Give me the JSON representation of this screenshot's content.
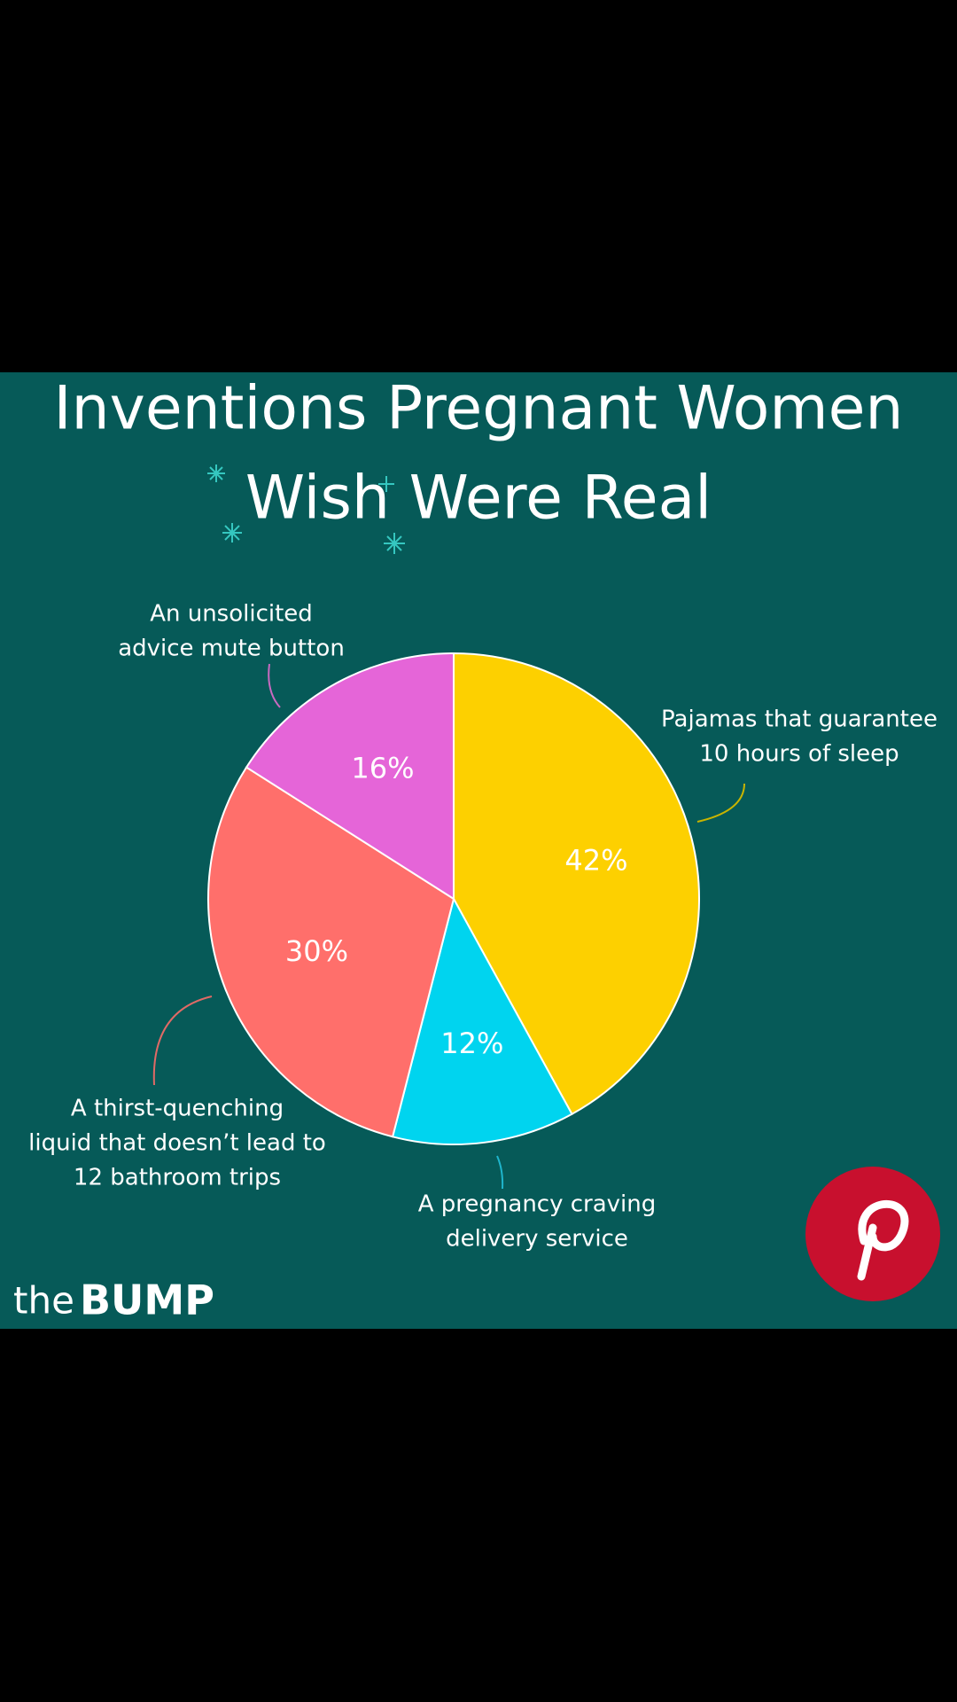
{
  "chart_data": {
    "type": "pie",
    "title_lines": [
      "Inventions Pregnant Women",
      "Wish Were Real"
    ],
    "categories": [
      [
        "Pajamas that guarantee",
        "10 hours of sleep"
      ],
      [
        "A pregnancy craving",
        "delivery service"
      ],
      [
        "A thirst-quenching",
        "liquid that doesn’t lead to",
        "12 bathroom trips"
      ],
      [
        "An unsolicited",
        "advice mute button"
      ]
    ],
    "values": [
      42,
      12,
      30,
      16
    ],
    "value_labels": [
      "42%",
      "12%",
      "30%",
      "16%"
    ],
    "colors": [
      "#fdd000",
      "#00d4ef",
      "#ff6f6b",
      "#e565d8"
    ]
  },
  "brand": {
    "prefix": "the",
    "name": "BUMP"
  }
}
